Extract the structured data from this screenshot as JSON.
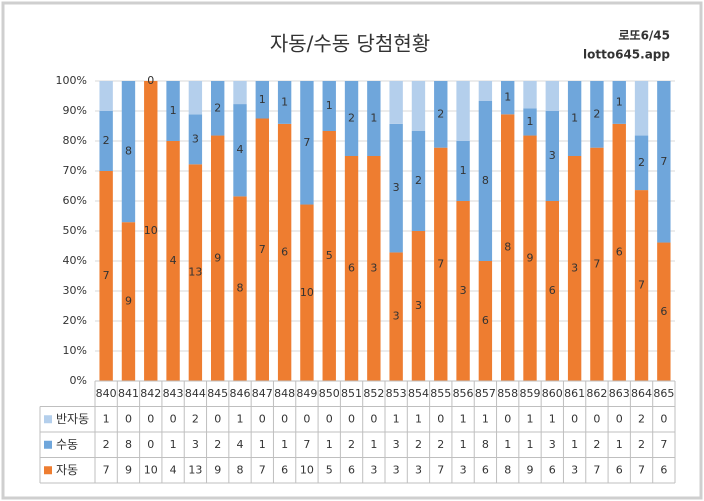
{
  "chart_data": {
    "type": "bar",
    "stacked": "percent",
    "title": "자동/수동 당첨현황",
    "annotations": [
      "로또6/45",
      "lotto645.app"
    ],
    "categories": [
      "840",
      "841",
      "842",
      "843",
      "844",
      "845",
      "846",
      "847",
      "848",
      "849",
      "850",
      "851",
      "852",
      "853",
      "854",
      "855",
      "856",
      "857",
      "858",
      "859",
      "860",
      "861",
      "862",
      "863",
      "864",
      "865"
    ],
    "series": [
      {
        "name": "반자동",
        "color": "#b4cfec",
        "values": [
          1,
          0,
          0,
          0,
          2,
          0,
          1,
          0,
          0,
          0,
          0,
          0,
          0,
          1,
          1,
          0,
          1,
          1,
          0,
          1,
          1,
          0,
          0,
          0,
          2,
          0
        ]
      },
      {
        "name": "수동",
        "color": "#6fa6db",
        "values": [
          2,
          8,
          0,
          1,
          3,
          2,
          4,
          1,
          1,
          7,
          1,
          2,
          1,
          3,
          2,
          2,
          1,
          8,
          1,
          1,
          3,
          1,
          2,
          1,
          2,
          7
        ]
      },
      {
        "name": "자동",
        "color": "#ee7d30",
        "values": [
          7,
          9,
          10,
          4,
          13,
          9,
          8,
          7,
          6,
          10,
          5,
          6,
          3,
          3,
          3,
          7,
          3,
          6,
          8,
          9,
          6,
          3,
          7,
          6,
          7,
          6
        ]
      }
    ],
    "ylim": [
      0,
      100
    ],
    "yticks": [
      {
        "value": 0,
        "label": "0%"
      },
      {
        "value": 10,
        "label": "10%"
      },
      {
        "value": 20,
        "label": "20%"
      },
      {
        "value": 30,
        "label": "30%"
      },
      {
        "value": 40,
        "label": "40%"
      },
      {
        "value": 50,
        "label": "50%"
      },
      {
        "value": 60,
        "label": "60%"
      },
      {
        "value": 70,
        "label": "70%"
      },
      {
        "value": 80,
        "label": "80%"
      },
      {
        "value": 90,
        "label": "90%"
      },
      {
        "value": 100,
        "label": "100%"
      }
    ],
    "grid": true,
    "data_table": true
  }
}
